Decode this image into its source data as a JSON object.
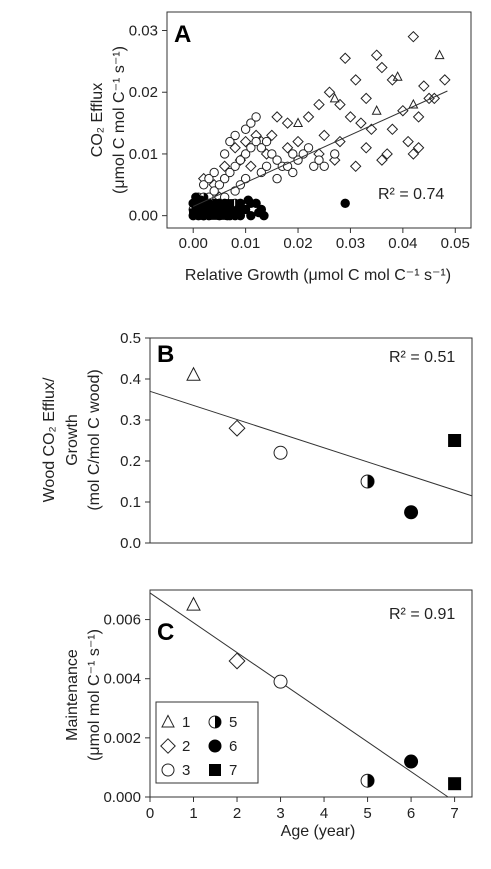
{
  "chart_data": [
    {
      "type": "scatter",
      "panel_label": "A",
      "xlabel": "Relative Growth (μmol C mol C⁻¹ s⁻¹)",
      "ylabel_line1": "CO₂ Efflux",
      "ylabel_line2": "(μmol C mol C⁻¹ s⁻¹)",
      "xlim": [
        -0.005,
        0.053
      ],
      "ylim": [
        -0.002,
        0.033
      ],
      "xticks": [
        "0.00",
        "0.01",
        "0.02",
        "0.03",
        "0.04",
        "0.05"
      ],
      "xtick_values": [
        0,
        0.01,
        0.02,
        0.03,
        0.04,
        0.05
      ],
      "yticks": [
        "0.00",
        "0.01",
        "0.02",
        "0.03"
      ],
      "ytick_values": [
        0,
        0.01,
        0.02,
        0.03
      ],
      "annotation": "R² = 0.74",
      "fit_line": {
        "x": [
          0.0,
          0.0485
        ],
        "y": [
          0.0015,
          0.0202
        ]
      },
      "series": [
        {
          "name": "1",
          "marker": "triangle",
          "points": [
            [
              0.047,
              0.026
            ],
            [
              0.039,
              0.0225
            ],
            [
              0.027,
              0.019
            ],
            [
              0.042,
              0.018
            ],
            [
              0.035,
              0.017
            ],
            [
              0.02,
              0.015
            ]
          ]
        },
        {
          "name": "2",
          "marker": "diamond",
          "points": [
            [
              0.042,
              0.029
            ],
            [
              0.035,
              0.026
            ],
            [
              0.029,
              0.0255
            ],
            [
              0.031,
              0.022
            ],
            [
              0.038,
              0.022
            ],
            [
              0.044,
              0.021
            ],
            [
              0.048,
              0.022
            ],
            [
              0.045,
              0.019
            ],
            [
              0.046,
              0.019
            ],
            [
              0.026,
              0.02
            ],
            [
              0.024,
              0.018
            ],
            [
              0.033,
              0.019
            ],
            [
              0.036,
              0.024
            ],
            [
              0.028,
              0.018
            ],
            [
              0.03,
              0.016
            ],
            [
              0.032,
              0.015
            ],
            [
              0.022,
              0.016
            ],
            [
              0.018,
              0.015
            ],
            [
              0.04,
              0.017
            ],
            [
              0.043,
              0.016
            ],
            [
              0.038,
              0.014
            ],
            [
              0.034,
              0.014
            ],
            [
              0.041,
              0.012
            ],
            [
              0.042,
              0.01
            ],
            [
              0.043,
              0.011
            ],
            [
              0.037,
              0.01
            ],
            [
              0.015,
              0.013
            ],
            [
              0.016,
              0.016
            ],
            [
              0.012,
              0.013
            ],
            [
              0.01,
              0.012
            ],
            [
              0.008,
              0.011
            ],
            [
              0.025,
              0.013
            ],
            [
              0.02,
              0.012
            ],
            [
              0.014,
              0.01
            ],
            [
              0.006,
              0.008
            ],
            [
              0.004,
              0.005
            ],
            [
              0.009,
              0.009
            ],
            [
              0.011,
              0.008
            ],
            [
              0.024,
              0.01
            ],
            [
              0.028,
              0.012
            ],
            [
              0.033,
              0.011
            ],
            [
              0.005,
              0.003
            ],
            [
              0.002,
              0.006
            ],
            [
              0.013,
              0.012
            ],
            [
              0.018,
              0.011
            ],
            [
              0.027,
              0.009
            ],
            [
              0.031,
              0.008
            ],
            [
              0.036,
              0.009
            ]
          ]
        },
        {
          "name": "3",
          "marker": "circle",
          "points": [
            [
              0.001,
              0.001
            ],
            [
              0.002,
              0.002
            ],
            [
              0.003,
              0.003
            ],
            [
              0.004,
              0.004
            ],
            [
              0.005,
              0.005
            ],
            [
              0.006,
              0.006
            ],
            [
              0.007,
              0.007
            ],
            [
              0.008,
              0.008
            ],
            [
              0.009,
              0.009
            ],
            [
              0.01,
              0.01
            ],
            [
              0.011,
              0.011
            ],
            [
              0.012,
              0.012
            ],
            [
              0.013,
              0.011
            ],
            [
              0.014,
              0.012
            ],
            [
              0.015,
              0.01
            ],
            [
              0.016,
              0.009
            ],
            [
              0.017,
              0.008
            ],
            [
              0.018,
              0.008
            ],
            [
              0.019,
              0.007
            ],
            [
              0.02,
              0.009
            ],
            [
              0.021,
              0.01
            ],
            [
              0.022,
              0.011
            ],
            [
              0.023,
              0.008
            ],
            [
              0.024,
              0.009
            ],
            [
              0.025,
              0.008
            ],
            [
              0.002,
              0.005
            ],
            [
              0.003,
              0.006
            ],
            [
              0.004,
              0.007
            ],
            [
              0.006,
              0.01
            ],
            [
              0.007,
              0.012
            ],
            [
              0.008,
              0.013
            ],
            [
              0.01,
              0.014
            ],
            [
              0.011,
              0.015
            ],
            [
              0.012,
              0.016
            ],
            [
              0.001,
              0.003
            ],
            [
              0.002,
              0.0
            ],
            [
              0.0,
              0.002
            ],
            [
              0.003,
              0.001
            ],
            [
              0.005,
              0.002
            ],
            [
              0.006,
              0.003
            ],
            [
              0.009,
              0.005
            ],
            [
              0.013,
              0.007
            ],
            [
              0.016,
              0.006
            ],
            [
              0.019,
              0.01
            ],
            [
              0.014,
              0.008
            ],
            [
              0.027,
              0.01
            ],
            [
              0.008,
              0.004
            ],
            [
              0.01,
              0.006
            ]
          ]
        },
        {
          "name": "5",
          "marker": "half-circle",
          "points": [
            [
              0.0,
              0.001
            ],
            [
              0.001,
              0.002
            ],
            [
              0.002,
              0.003
            ],
            [
              0.004,
              0.002
            ],
            [
              0.006,
              0.001
            ],
            [
              0.008,
              0.002
            ]
          ]
        },
        {
          "name": "6",
          "marker": "filled-circle",
          "points": [
            [
              0.029,
              0.002
            ],
            [
              0.0,
              0.0
            ],
            [
              0.001,
              0.001
            ],
            [
              0.002,
              0.0
            ],
            [
              0.003,
              0.002
            ],
            [
              0.004,
              0.001
            ],
            [
              0.005,
              0.0
            ],
            [
              0.006,
              0.002
            ],
            [
              0.007,
              0.001
            ],
            [
              0.008,
              0.0
            ],
            [
              0.009,
              0.002
            ],
            [
              0.01,
              0.001
            ],
            [
              0.011,
              0.0
            ],
            [
              0.012,
              0.002
            ],
            [
              0.013,
              0.001
            ],
            [
              0.0,
              0.002
            ],
            [
              0.001,
              0.0
            ],
            [
              0.003,
              0.0
            ],
            [
              0.005,
              0.002
            ],
            [
              0.007,
              0.0
            ],
            [
              0.009,
              0.0
            ],
            [
              0.011,
              0.002
            ],
            [
              0.0125,
              0.0005
            ],
            [
              0.0135,
              0.0
            ],
            [
              0.0005,
              0.003
            ],
            [
              0.0015,
              0.0025
            ],
            [
              0.0025,
              0.001
            ],
            [
              0.0065,
              0.0
            ],
            [
              0.0085,
              0.001
            ],
            [
              0.0105,
              0.0025
            ]
          ]
        },
        {
          "name": "7",
          "marker": "filled-square",
          "points": [
            [
              0.0,
              0.0005
            ],
            [
              0.0005,
              0.0015
            ],
            [
              0.001,
              0.0025
            ],
            [
              0.0015,
              0.0
            ],
            [
              0.002,
              0.001
            ],
            [
              0.0025,
              0.002
            ],
            [
              0.003,
              0.0005
            ],
            [
              0.0035,
              0.0015
            ],
            [
              0.004,
              0.0
            ],
            [
              0.0045,
              0.002
            ],
            [
              0.005,
              0.001
            ],
            [
              0.0055,
              0.0
            ],
            [
              0.006,
              0.0015
            ],
            [
              0.0065,
              0.0005
            ],
            [
              0.007,
              0.002
            ]
          ]
        }
      ]
    },
    {
      "type": "scatter",
      "panel_label": "B",
      "xlabel": "",
      "ylabel_line1": "Wood CO₂ Efflux/",
      "ylabel_line2": "Growth",
      "ylabel_line3": "(mol C/mol C wood)",
      "xlim": [
        0,
        7.4
      ],
      "ylim": [
        0,
        0.5
      ],
      "yticks": [
        "0.0",
        "0.1",
        "0.2",
        "0.3",
        "0.4",
        "0.5"
      ],
      "ytick_values": [
        0,
        0.1,
        0.2,
        0.3,
        0.4,
        0.5
      ],
      "annotation": "R² = 0.51",
      "fit_line": {
        "x": [
          0,
          7.4
        ],
        "y": [
          0.37,
          0.115
        ]
      },
      "points": [
        {
          "x": 1,
          "y": 0.41,
          "marker": "triangle"
        },
        {
          "x": 2,
          "y": 0.28,
          "marker": "diamond"
        },
        {
          "x": 3,
          "y": 0.22,
          "marker": "circle"
        },
        {
          "x": 5,
          "y": 0.15,
          "marker": "half-circle"
        },
        {
          "x": 6,
          "y": 0.075,
          "marker": "filled-circle"
        },
        {
          "x": 7,
          "y": 0.25,
          "marker": "filled-square"
        }
      ]
    },
    {
      "type": "scatter",
      "panel_label": "C",
      "xlabel": "Age (year)",
      "ylabel_line1": "Maintenance",
      "ylabel_line2": "(μmol mol C⁻¹ s⁻¹)",
      "xlim": [
        0,
        7.4
      ],
      "ylim": [
        0,
        0.007
      ],
      "xticks": [
        "0",
        "1",
        "2",
        "3",
        "4",
        "5",
        "6",
        "7"
      ],
      "xtick_values": [
        0,
        1,
        2,
        3,
        4,
        5,
        6,
        7
      ],
      "yticks": [
        "0.000",
        "0.002",
        "0.004",
        "0.006"
      ],
      "ytick_values": [
        0,
        0.002,
        0.004,
        0.006
      ],
      "annotation": "R² = 0.91",
      "fit_line": {
        "x": [
          0,
          6.85
        ],
        "y": [
          0.0069,
          0.0
        ]
      },
      "points": [
        {
          "x": 1,
          "y": 0.0065,
          "marker": "triangle"
        },
        {
          "x": 2,
          "y": 0.0046,
          "marker": "diamond"
        },
        {
          "x": 3,
          "y": 0.0039,
          "marker": "circle"
        },
        {
          "x": 5,
          "y": 0.00055,
          "marker": "half-circle"
        },
        {
          "x": 6,
          "y": 0.0012,
          "marker": "filled-circle"
        },
        {
          "x": 7,
          "y": 0.00045,
          "marker": "filled-square"
        }
      ],
      "legend": {
        "placement": "bottom-left",
        "entries": [
          {
            "label": "1",
            "marker": "triangle"
          },
          {
            "label": "5",
            "marker": "half-circle"
          },
          {
            "label": "2",
            "marker": "diamond"
          },
          {
            "label": "6",
            "marker": "filled-circle"
          },
          {
            "label": "3",
            "marker": "circle"
          },
          {
            "label": "7",
            "marker": "filled-square"
          }
        ]
      }
    }
  ]
}
